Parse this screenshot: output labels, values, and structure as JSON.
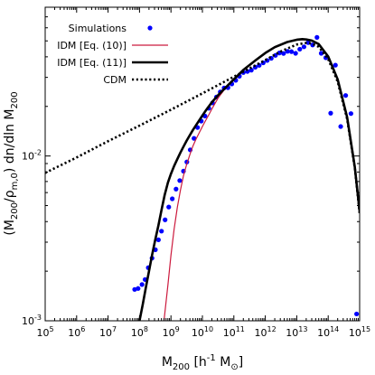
{
  "chart_data": {
    "type": "line",
    "x_scale": "log",
    "y_scale": "log",
    "xlim": [
      100000,
      1000000000000000
    ],
    "ylim": [
      0.001,
      0.08
    ],
    "grid": false,
    "legend_position": "top-left",
    "xlabel": {
      "main": "M",
      "sub": "200",
      "rest": " [h",
      "sup": "-1",
      "unit": " M",
      "unit_sub": "⊙",
      "close": "]"
    },
    "ylabel": {
      "p1": "(M",
      "s1": "200",
      "p2": "/ρ",
      "s2": "m,0",
      "p3": ") dn/dln M",
      "s3": "200"
    },
    "x_ticks": [
      {
        "base": "10",
        "exp": "5",
        "value": 100000.0
      },
      {
        "base": "10",
        "exp": "6",
        "value": 1000000.0
      },
      {
        "base": "10",
        "exp": "7",
        "value": 10000000.0
      },
      {
        "base": "10",
        "exp": "8",
        "value": 100000000.0
      },
      {
        "base": "10",
        "exp": "9",
        "value": 1000000000.0
      },
      {
        "base": "10",
        "exp": "10",
        "value": 10000000000.0
      },
      {
        "base": "10",
        "exp": "11",
        "value": 100000000000.0
      },
      {
        "base": "10",
        "exp": "12",
        "value": 1000000000000.0
      },
      {
        "base": "10",
        "exp": "13",
        "value": 10000000000000.0
      },
      {
        "base": "10",
        "exp": "14",
        "value": 100000000000000.0
      },
      {
        "base": "10",
        "exp": "15",
        "value": 1000000000000000.0
      }
    ],
    "y_ticks": [
      {
        "base": "10",
        "exp": "-3",
        "value": 0.001
      },
      {
        "base": "10",
        "exp": "-2",
        "value": 0.01
      }
    ],
    "series": [
      {
        "name": "Simulations",
        "kind": "scatter",
        "color": "#0000ff",
        "x": [
          70000000.0,
          90000000.0,
          120000000.0,
          150000000.0,
          190000000.0,
          250000000.0,
          320000000.0,
          400000000.0,
          500000000.0,
          650000000.0,
          850000000.0,
          1100000000.0,
          1450000000.0,
          1900000000.0,
          2500000000.0,
          3200000000.0,
          4100000000.0,
          5400000000.0,
          7000000000.0,
          9200000000.0,
          12000000000.0,
          16000000000.0,
          21000000000.0,
          28000000000.0,
          37000000000.0,
          49000000000.0,
          65000000000.0,
          86000000000.0,
          115000000000.0,
          150000000000.0,
          200000000000.0,
          270000000000.0,
          360000000000.0,
          480000000000.0,
          640000000000.0,
          860000000000.0,
          1150000000000.0,
          1550000000000.0,
          2100000000000.0,
          2800000000000.0,
          3800000000000.0,
          5100000000000.0,
          6800000000000.0,
          9200000000000.0,
          12500000000000.0,
          17000000000000.0,
          23000000000000.0,
          32000000000000.0,
          44000000000000.0,
          60000000000000.0,
          84000000000000.0,
          120000000000000.0,
          170000000000000.0,
          250000000000000.0,
          360000000000000.0,
          530000000000000.0,
          800000000000000.0
        ],
        "y": [
          0.00155,
          0.00157,
          0.00166,
          0.00178,
          0.0021,
          0.0024,
          0.0027,
          0.0031,
          0.0035,
          0.0041,
          0.0049,
          0.0055,
          0.0063,
          0.0071,
          0.0081,
          0.0092,
          0.0109,
          0.0128,
          0.0149,
          0.0163,
          0.0175,
          0.0195,
          0.021,
          0.0228,
          0.0245,
          0.0259,
          0.026,
          0.0274,
          0.0288,
          0.0305,
          0.0321,
          0.0326,
          0.0332,
          0.0346,
          0.0355,
          0.0368,
          0.038,
          0.0392,
          0.0408,
          0.0422,
          0.0419,
          0.0432,
          0.043,
          0.042,
          0.0445,
          0.046,
          0.0488,
          0.0472,
          0.0525,
          0.042,
          0.0395,
          0.0182,
          0.0356,
          0.0151,
          0.0233,
          0.0181,
          0.0011
        ]
      },
      {
        "name": "IDM [Eq. (10)]",
        "kind": "line",
        "color": "#cc1a3d",
        "stroke": "solid",
        "width": 1.2,
        "x": [
          600000000.0,
          650000000.0,
          800000000.0,
          1000000000.0,
          1260000000.0,
          1600000000.0,
          2000000000.0,
          2500000000.0,
          3160000000.0,
          4000000000.0,
          5000000000.0,
          6300000000.0,
          8000000000.0,
          10000000000.0,
          12600000000.0,
          16000000000.0,
          20000000000.0,
          31600000000.0,
          50000000000.0,
          100000000000.0,
          200000000000.0,
          500000000000.0,
          1000000000000.0,
          2000000000000.0,
          5000000000000.0,
          10000000000000.0,
          15000000000000.0,
          20000000000000.0,
          30000000000000.0,
          50000000000000.0,
          100000000000000.0,
          200000000000000.0,
          400000000000000.0,
          700000000000000.0,
          1000000000000000.0
        ],
        "y": [
          0.001,
          0.00115,
          0.00165,
          0.0025,
          0.0036,
          0.0049,
          0.0062,
          0.0076,
          0.0089,
          0.0102,
          0.0115,
          0.0127,
          0.0139,
          0.0151,
          0.0164,
          0.0178,
          0.0193,
          0.0225,
          0.0253,
          0.029,
          0.033,
          0.0379,
          0.042,
          0.0455,
          0.049,
          0.0505,
          0.0508,
          0.0507,
          0.05,
          0.0475,
          0.04,
          0.029,
          0.017,
          0.0085,
          0.0045
        ]
      },
      {
        "name": "IDM [Eq. (11)]",
        "kind": "line",
        "color": "#000000",
        "stroke": "solid",
        "width": 2.6,
        "x": [
          100000000.0,
          126000000.0,
          160000000.0,
          200000000.0,
          250000000.0,
          316000000.0,
          400000000.0,
          500000000.0,
          630000000.0,
          800000000.0,
          1000000000.0,
          1260000000.0,
          1600000000.0,
          2000000000.0,
          2500000000.0,
          3160000000.0,
          4000000000.0,
          5000000000.0,
          6300000000.0,
          8000000000.0,
          10000000000.0,
          12600000000.0,
          16000000000.0,
          20000000000.0,
          31600000000.0,
          50000000000.0,
          100000000000.0,
          200000000000.0,
          500000000000.0,
          1000000000000.0,
          2000000000000.0,
          5000000000000.0,
          10000000000000.0,
          15000000000000.0,
          20000000000000.0,
          30000000000000.0,
          50000000000000.0,
          100000000000000.0,
          200000000000000.0,
          400000000000000.0,
          700000000000000.0,
          1000000000000000.0
        ],
        "y": [
          0.001,
          0.00125,
          0.0016,
          0.002,
          0.0025,
          0.0031,
          0.0038,
          0.0047,
          0.0058,
          0.0069,
          0.0078,
          0.0087,
          0.0096,
          0.0105,
          0.0114,
          0.0124,
          0.0134,
          0.0144,
          0.0154,
          0.0165,
          0.0176,
          0.0188,
          0.02,
          0.0212,
          0.0234,
          0.0256,
          0.0292,
          0.0333,
          0.0382,
          0.0422,
          0.0458,
          0.0492,
          0.0508,
          0.0512,
          0.051,
          0.0502,
          0.0478,
          0.0402,
          0.0292,
          0.0172,
          0.0086,
          0.0046
        ]
      },
      {
        "name": "CDM",
        "kind": "line",
        "color": "#000000",
        "stroke": "dotted",
        "width": 2.6,
        "x": [
          100000.0,
          1000000.0,
          10000000.0,
          100000000.0,
          1000000000.0,
          10000000000.0,
          100000000000.0,
          1000000000000.0,
          3000000000000.0,
          10000000000000.0,
          20000000000000.0,
          30000000000000.0,
          50000000000000.0,
          100000000000000.0,
          200000000000000.0,
          400000000000000.0,
          700000000000000.0,
          1000000000000000.0
        ],
        "y": [
          0.0079,
          0.0098,
          0.0123,
          0.0153,
          0.0191,
          0.024,
          0.0303,
          0.0382,
          0.043,
          0.0475,
          0.0486,
          0.0482,
          0.046,
          0.0388,
          0.0283,
          0.0168,
          0.0085,
          0.0045
        ]
      }
    ]
  }
}
